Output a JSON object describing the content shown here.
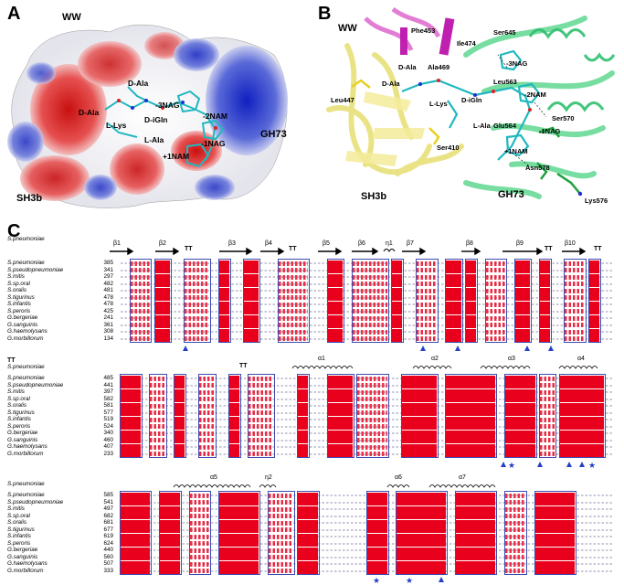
{
  "panels": {
    "A": {
      "label": "A",
      "labels": {
        "ww": "WW",
        "sh3b": "SH3b",
        "gh73": "GH73",
        "dala1": "D-Ala",
        "dala2": "D-Ala",
        "llys": "L-Lys",
        "digln": "D-iGln",
        "lala": "L-Ala",
        "nag3": "-3NAG",
        "nam2": "-2NAM",
        "nag1": "-1NAG",
        "nam1": "+1NAM"
      }
    },
    "B": {
      "label": "B",
      "labels": {
        "ww": "WW",
        "sh3b": "SH3b",
        "gh73": "GH73",
        "phe453": "Phe453",
        "ile474": "Ile474",
        "ser645": "Ser645",
        "ala469": "Ala469",
        "dala1": "D-Ala",
        "dala2": "D-Ala",
        "nag3": "-3NAG",
        "leu563": "Leu563",
        "nam2": "-2NAM",
        "leu447": "Leu447",
        "digln": "D-iGln",
        "llys": "L-Lys",
        "glu564": "Glu564",
        "lala": "L-Ala",
        "ser570": "Ser570",
        "nag1": "-1NAG",
        "ser410": "Ser410",
        "nam1": "+1NAM",
        "asn578": "Asn578",
        "lys576": "Lys576"
      }
    },
    "C": {
      "label": "C",
      "colors": {
        "identical": "#e8001c",
        "similar_text": "#e8001c",
        "box": "#3b4bb0",
        "marker": "#2340c8"
      },
      "blocks": [
        {
          "ref_name": "S.pneumoniae",
          "ss_labels": [
            "β1",
            "β2",
            "TT",
            "β3",
            "β4",
            "TT",
            "β5",
            "β6",
            "η1",
            "β7",
            "β8",
            "β9",
            "TT",
            "β10",
            "TT"
          ],
          "rows": [
            {
              "name": "S.pneumoniae",
              "start": "385"
            },
            {
              "name": "S.pseudopneumoniae",
              "start": "341"
            },
            {
              "name": "S.mitis",
              "start": "297"
            },
            {
              "name": "S.sp.oral",
              "start": "482"
            },
            {
              "name": "S.oralis",
              "start": "481"
            },
            {
              "name": "S.tigurinus",
              "start": "478"
            },
            {
              "name": "S.infantis",
              "start": "478"
            },
            {
              "name": "S.peroris",
              "start": "425"
            },
            {
              "name": "G.bergeriae",
              "start": "241"
            },
            {
              "name": "G.sanguinis",
              "start": "361"
            },
            {
              "name": "G.haemolysans",
              "start": "308"
            },
            {
              "name": "G.morbillorum",
              "start": "134"
            }
          ]
        },
        {
          "ref_name": "S.pneumoniae",
          "ss_labels": [
            "TT",
            "TT",
            "α1",
            "α2",
            "α3",
            "α4"
          ],
          "rows": [
            {
              "name": "S.pneumoniae",
              "start": "485"
            },
            {
              "name": "S.pseudopneumoniae",
              "start": "441"
            },
            {
              "name": "S.mitis",
              "start": "397"
            },
            {
              "name": "S.sp.oral",
              "start": "582"
            },
            {
              "name": "S.oralis",
              "start": "581"
            },
            {
              "name": "S.tigurinus",
              "start": "577"
            },
            {
              "name": "S.infantis",
              "start": "519"
            },
            {
              "name": "S.peroris",
              "start": "524"
            },
            {
              "name": "G.bergeriae",
              "start": "340"
            },
            {
              "name": "G.sanguinis",
              "start": "460"
            },
            {
              "name": "G.haemolysans",
              "start": "407"
            },
            {
              "name": "G.morbillorum",
              "start": "233"
            }
          ]
        },
        {
          "ref_name": "S.pneumoniae",
          "ss_labels": [
            "α5",
            "η2",
            "α6",
            "α7"
          ],
          "rows": [
            {
              "name": "S.pneumoniae",
              "start": "585"
            },
            {
              "name": "S.pseudopneumoniae",
              "start": "541"
            },
            {
              "name": "S.mitis",
              "start": "497"
            },
            {
              "name": "S.sp.oral",
              "start": "682"
            },
            {
              "name": "S.oralis",
              "start": "681"
            },
            {
              "name": "S.tigurinus",
              "start": "677"
            },
            {
              "name": "S.infantis",
              "start": "619"
            },
            {
              "name": "S.peroris",
              "start": "624"
            },
            {
              "name": "G.bergeriae",
              "start": "440"
            },
            {
              "name": "G.sanguinis",
              "start": "560"
            },
            {
              "name": "G.haemolysans",
              "start": "507"
            },
            {
              "name": "G.morbillorum",
              "start": "333"
            }
          ]
        }
      ]
    }
  }
}
